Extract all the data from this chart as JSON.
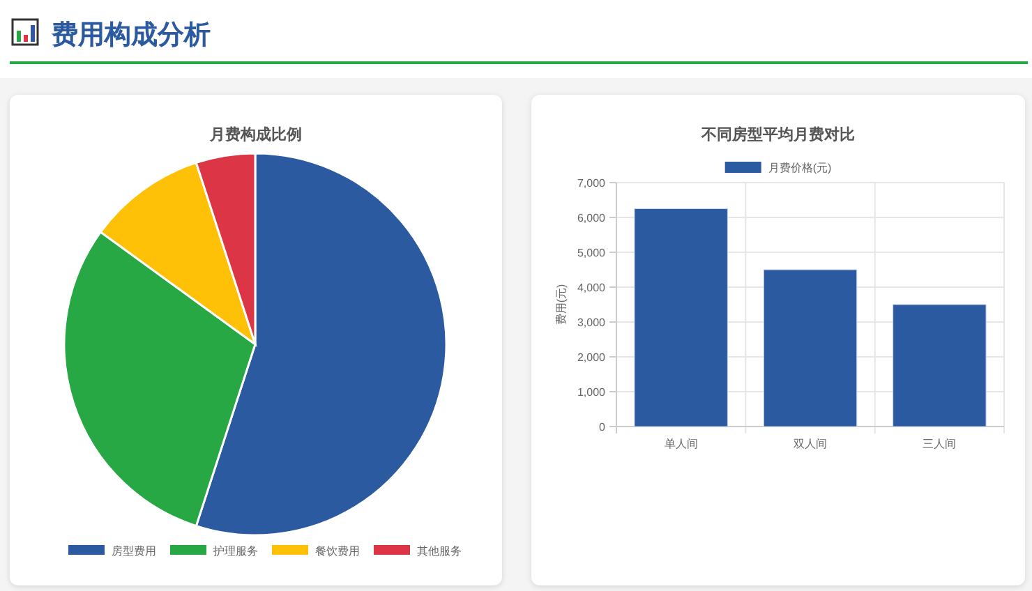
{
  "chart_data": [
    {
      "type": "other",
      "title": "费用构成分析"
    },
    {
      "type": "pie",
      "title": "月费构成比例",
      "categories": [
        "房型费用",
        "护理服务",
        "餐饮费用",
        "其他服务"
      ],
      "values": [
        55,
        30,
        10,
        5
      ],
      "colors": [
        "#2b5aa0",
        "#28a745",
        "#ffc107",
        "#dc3545"
      ],
      "legend": "bottom"
    },
    {
      "type": "bar",
      "title": "不同房型平均月费对比",
      "ylabel": "费用(元)",
      "categories": [
        "单人间",
        "双人间",
        "三人间"
      ],
      "series": [
        {
          "name": "月费价格(元)",
          "color": "#2b5aa0",
          "values": [
            6250,
            4500,
            3500
          ]
        }
      ],
      "ylim": [
        0,
        7000
      ],
      "yticks": [
        {
          "value": 0,
          "label": "0"
        },
        {
          "value": 1000,
          "label": "1,000"
        },
        {
          "value": 2000,
          "label": "2,000"
        },
        {
          "value": 3000,
          "label": "3,000"
        },
        {
          "value": 4000,
          "label": "4,000"
        },
        {
          "value": 5000,
          "label": "5,000"
        },
        {
          "value": 6000,
          "label": "6,000"
        },
        {
          "value": 7000,
          "label": "7,000"
        }
      ],
      "grid": true,
      "legend": "top"
    }
  ]
}
